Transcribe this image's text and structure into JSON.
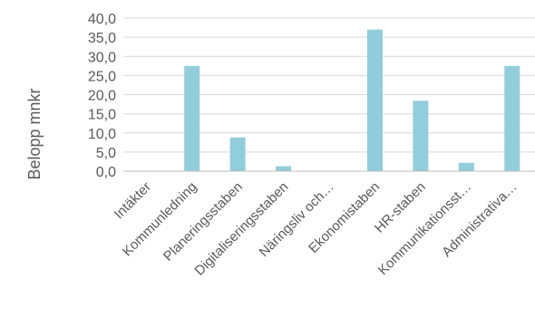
{
  "chart_data": {
    "type": "bar",
    "title": "",
    "xlabel": "",
    "ylabel": "Belopp mnkr",
    "categories": [
      "Intäkter",
      "Kommunledning",
      "Planeringsstaben",
      "Digitaliseringsstaben",
      "Näringsliv och…",
      "Ekonomistaben",
      "HR-staben",
      "Kommunikationsst…",
      "Administrativa…"
    ],
    "values": [
      0,
      27.5,
      8.8,
      1.3,
      0,
      37.0,
      18.4,
      2.2,
      27.5
    ],
    "ylim": [
      0,
      40
    ],
    "yticks": [
      "0,0",
      "5,0",
      "10,0",
      "15,0",
      "20,0",
      "25,0",
      "30,0",
      "35,0",
      "40,0"
    ],
    "grid": true,
    "legend": "none",
    "bar_color": "#92CDDC"
  }
}
